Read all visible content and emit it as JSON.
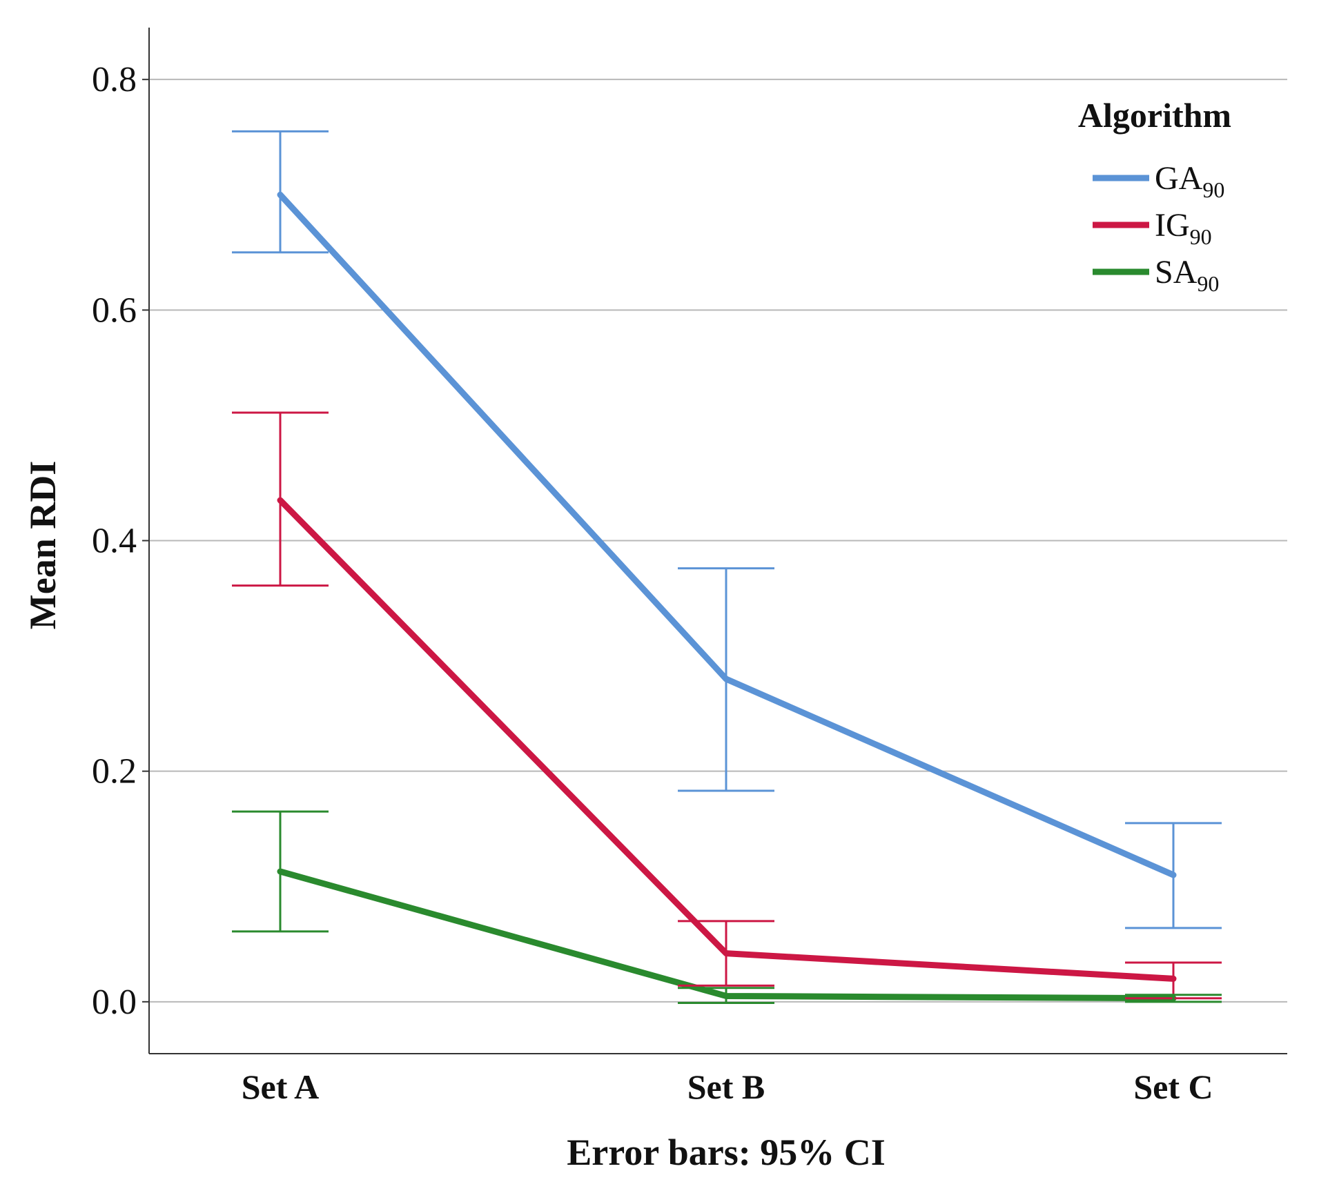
{
  "chart_data": {
    "type": "line",
    "title": "",
    "xlabel": "Error bars: 95% CI",
    "ylabel": "Mean RDI",
    "categories": [
      "Set A",
      "Set B",
      "Set C"
    ],
    "ylim": [
      -0.045,
      0.845
    ],
    "yticks": [
      0.0,
      0.2,
      0.4,
      0.6,
      0.8
    ],
    "ytick_labels": [
      "0.0",
      "0.2",
      "0.4",
      "0.6",
      "0.8"
    ],
    "grid": true,
    "legend": {
      "title": "Algorithm",
      "position": "top-right"
    },
    "series": [
      {
        "name": "GA90",
        "label_main": "GA",
        "label_sub": "90",
        "color": "#5b93d6",
        "values": [
          0.7,
          0.28,
          0.11
        ],
        "ci_lower": [
          0.65,
          0.183,
          0.064
        ],
        "ci_upper": [
          0.755,
          0.376,
          0.155
        ]
      },
      {
        "name": "IG90",
        "label_main": "IG",
        "label_sub": "90",
        "color": "#cc1744",
        "values": [
          0.435,
          0.042,
          0.02
        ],
        "ci_lower": [
          0.361,
          0.014,
          0.003
        ],
        "ci_upper": [
          0.511,
          0.07,
          0.034
        ]
      },
      {
        "name": "SA90",
        "label_main": "SA",
        "label_sub": "90",
        "color": "#2a8a2e",
        "values": [
          0.113,
          0.005,
          0.003
        ],
        "ci_lower": [
          0.061,
          -0.001,
          0.0
        ],
        "ci_upper": [
          0.165,
          0.012,
          0.006
        ]
      }
    ]
  }
}
